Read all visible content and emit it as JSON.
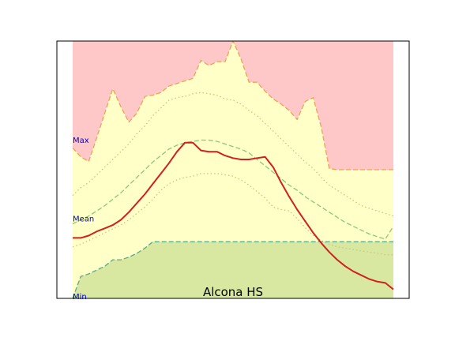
{
  "chart_data": {
    "type": "area",
    "title": "Alcona HS",
    "xlabel": "",
    "ylabel": "",
    "grid": false,
    "xlim": [
      0,
      40
    ],
    "ylim": [
      0,
      100
    ],
    "annotations": [
      "Max",
      "Mean",
      "Min"
    ],
    "annotation_values": [
      59.5,
      29,
      0
    ],
    "x": [
      0,
      1,
      2,
      3,
      4,
      5,
      6,
      7,
      8,
      9,
      10,
      11,
      12,
      13,
      14,
      15,
      16,
      17,
      18,
      19,
      20,
      21,
      22,
      23,
      24,
      25,
      26,
      27,
      28,
      29,
      30,
      31,
      32,
      33,
      34,
      35,
      36,
      37,
      38,
      39,
      40
    ],
    "series": [
      {
        "role": "upper-band",
        "color": "#ffc8c8",
        "values": [
          58.5,
          55,
          53.2,
          62.5,
          72,
          81.5,
          74.5,
          68.5,
          72,
          78.5,
          79,
          80,
          82.5,
          83.5,
          84.5,
          85.5,
          92.5,
          90.5,
          92,
          92,
          100,
          93,
          84,
          84,
          80.5,
          77.5,
          75.5,
          73,
          69.5,
          76.5,
          78,
          66.5,
          50.5,
          50,
          50,
          50,
          50,
          50,
          50,
          50,
          50
        ]
      },
      {
        "role": "max",
        "color": "#f5a050",
        "dash": "dashed",
        "values": [
          58.5,
          55,
          53.2,
          62.5,
          72,
          81.5,
          74.5,
          68.5,
          72,
          78.5,
          79,
          80,
          82.5,
          83.5,
          84.5,
          85.5,
          92.5,
          90.5,
          92,
          92,
          100,
          93,
          84,
          84,
          80.5,
          77.5,
          75.5,
          73,
          69.5,
          76.5,
          78,
          66.5,
          50.5,
          50,
          50,
          50,
          50,
          50,
          50,
          50,
          50
        ]
      },
      {
        "role": "upper-quantile",
        "color": "#c8c878",
        "dash": "dotted",
        "values": [
          40,
          43,
          45,
          48,
          51,
          54,
          57,
          60,
          64,
          67,
          71,
          74,
          77,
          78,
          78.5,
          79.5,
          80,
          79.5,
          79,
          77.5,
          77,
          75.5,
          73,
          71,
          68,
          65,
          62,
          59,
          56,
          53,
          50.5,
          47,
          44,
          42,
          40,
          38,
          36,
          35,
          34,
          33,
          32
        ]
      },
      {
        "role": "mean",
        "color": "#8cc878",
        "dash": "dashed",
        "values": [
          29,
          30.5,
          32,
          34,
          36,
          38.5,
          41,
          44,
          47,
          50,
          53,
          55.5,
          58,
          59.5,
          60.5,
          61,
          61.5,
          61.5,
          61,
          60,
          59,
          58,
          56.5,
          54,
          51.5,
          49,
          46.5,
          44,
          42,
          39.5,
          37.5,
          35.5,
          33.5,
          31.5,
          29.5,
          28,
          26.5,
          25,
          24,
          23,
          28
        ]
      },
      {
        "role": "lower-quantile",
        "color": "#c8c878",
        "dash": "dotted",
        "values": [
          20,
          21,
          22.5,
          24,
          25.5,
          27,
          28.5,
          30.5,
          33,
          35.5,
          38.5,
          42,
          44.5,
          46,
          47,
          47.5,
          48.5,
          48.5,
          48.5,
          48,
          47.5,
          46,
          44,
          41.5,
          39,
          35.5,
          34.5,
          34,
          31,
          27.5,
          24.5,
          22.5,
          21,
          20,
          19.5,
          19,
          18.5,
          18,
          17.5,
          17,
          17
        ]
      },
      {
        "role": "year",
        "color": "#d02020",
        "dash": "solid",
        "values": [
          23.5,
          23.5,
          24.4,
          26,
          27.2,
          28.5,
          30.5,
          33.5,
          37,
          40.5,
          44.5,
          48.5,
          52.5,
          57,
          60.5,
          60.5,
          57.5,
          57,
          57,
          55.5,
          54.5,
          54,
          54,
          54.5,
          55,
          51,
          45,
          39.5,
          34.5,
          30,
          25.5,
          21.5,
          18,
          15,
          12.5,
          10.5,
          9,
          7.5,
          6.5,
          6,
          3.5
        ]
      },
      {
        "role": "lower-band",
        "color": "#d8e8a0",
        "values": [
          0,
          8.5,
          9.5,
          11,
          12.5,
          15,
          15,
          16,
          17.5,
          19.5,
          22,
          22,
          22,
          22,
          22,
          22,
          22,
          22,
          22,
          22,
          22,
          22,
          22,
          22,
          22,
          22,
          22,
          22,
          22,
          22,
          22,
          22,
          22,
          22,
          22,
          22,
          22,
          22,
          22,
          22,
          22
        ]
      },
      {
        "role": "min",
        "color": "#5aaa8c",
        "dash": "dashed",
        "values": [
          0,
          8.5,
          9.5,
          11,
          12.5,
          15,
          15,
          16,
          17.5,
          19.5,
          22,
          22,
          22,
          22,
          22,
          22,
          22,
          22,
          22,
          22,
          22,
          22,
          22,
          22,
          22,
          22,
          22,
          22,
          22,
          22,
          22,
          22,
          22,
          22,
          22,
          22,
          22,
          22,
          22,
          22,
          22
        ]
      }
    ]
  }
}
